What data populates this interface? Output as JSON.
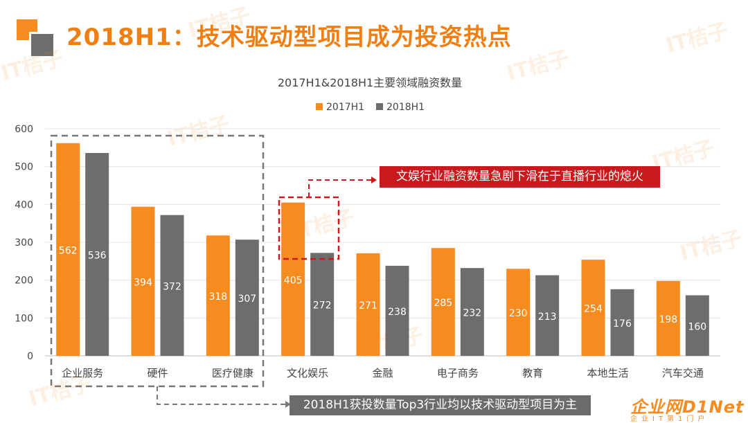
{
  "page": {
    "title": "2018H1：技术驱动型项目成为投资热点",
    "watermark": "IT桔子",
    "callout_top": "文娱行业融资数量急剧下滑在于直播行业的熄火",
    "callout_bottom": "2018H1获投数量Top3行业均以技术驱动型项目为主",
    "footer_logo_main": "企业网D1Net",
    "footer_logo_sub": "企业IT第1门户"
  },
  "colors": {
    "series_2017": "#f68b1f",
    "series_2018": "#6d6d6d",
    "title": "#f07e12",
    "callout_red": "#c8191c",
    "callout_gray": "#6b6b6b"
  },
  "chart_data": {
    "type": "bar",
    "title": "2017H1&2018H1主要领域融资数量",
    "categories": [
      "企业服务",
      "硬件",
      "医疗健康",
      "文化娱乐",
      "金融",
      "电子商务",
      "教育",
      "本地生活",
      "汽车交通"
    ],
    "series": [
      {
        "name": "2017H1",
        "values": [
          562,
          394,
          318,
          405,
          271,
          285,
          230,
          254,
          198
        ]
      },
      {
        "name": "2018H1",
        "values": [
          536,
          372,
          307,
          272,
          238,
          232,
          213,
          176,
          160
        ]
      }
    ],
    "ylim": [
      0,
      600
    ],
    "yticks": [
      0,
      100,
      200,
      300,
      400,
      500,
      600
    ],
    "grid": true,
    "legend": "top-center",
    "data_labels": "inside-bar"
  }
}
